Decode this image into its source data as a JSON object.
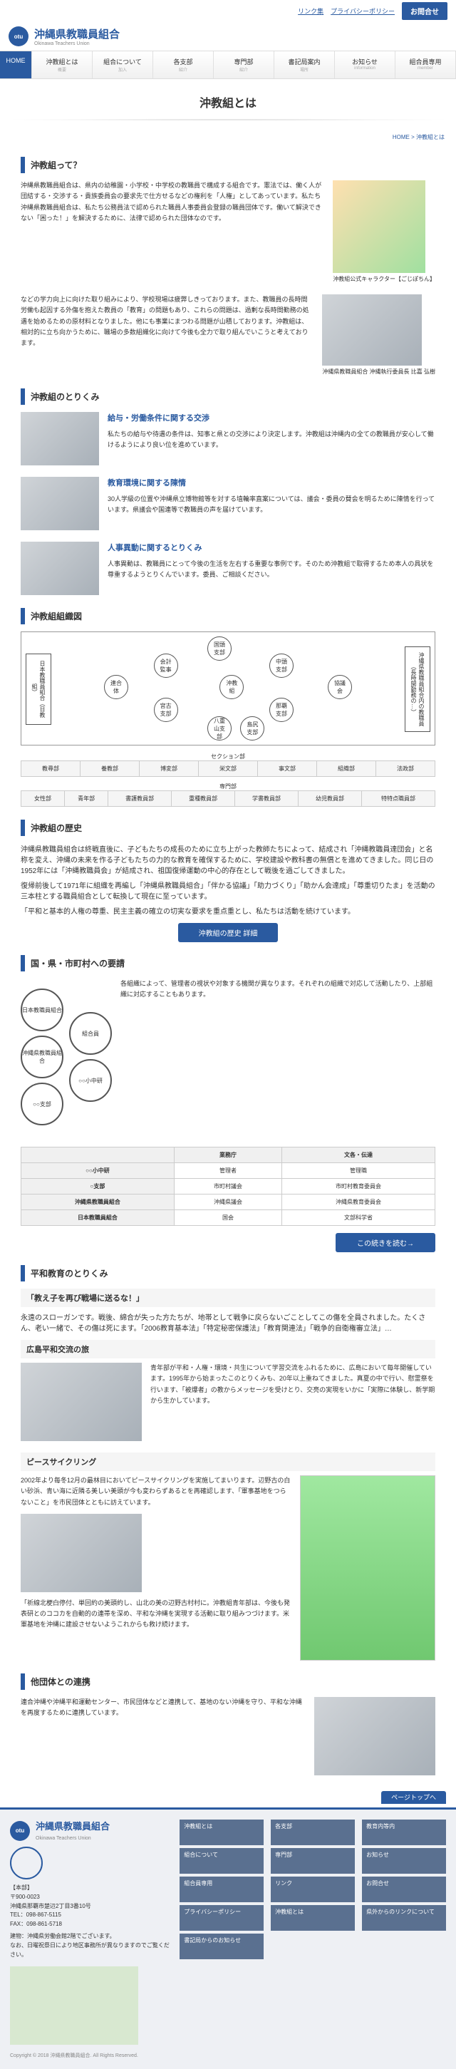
{
  "topbar": {
    "links": [
      "リンク集",
      "プライバシーポリシー"
    ],
    "contact": "お問合せ"
  },
  "site": {
    "jp": "沖縄県教職員組合",
    "en": "Okinawa Teachers Union",
    "logo_abbr": "otu"
  },
  "nav": [
    {
      "label": "HOME",
      "sub": ""
    },
    {
      "label": "沖教組とは",
      "sub": "概要"
    },
    {
      "label": "組合について",
      "sub": "加入"
    },
    {
      "label": "各支部",
      "sub": "紹介"
    },
    {
      "label": "専門部",
      "sub": "紹介"
    },
    {
      "label": "書記局案内",
      "sub": "場所"
    },
    {
      "label": "お知らせ",
      "sub": "information"
    },
    {
      "label": "組合員専用",
      "sub": "member"
    }
  ],
  "page_title": "沖教組とは",
  "breadcrumb": "HOME > 沖教組とは",
  "sections": {
    "about": {
      "title": "沖教組って？",
      "body": "沖縄県教職員組合は、県内の幼稚園・小学校・中学校の教職員で構成する組合です。憲法では、働く人が団結する・交渉する・貴族委員会の要求先で仕方せるなどの権利を「人権」としてあっています。私たち沖縄県教職員組合は、私たち公務員法で認められた職員人事委員会登録の職員団体です。働いて解決できない「困った！」を解決するために、法律で認められた団体なのです。",
      "mascot_caption": "沖教組公式キャラクター【ごじぽちん】",
      "greeting": "などの学力向上に向けた取り組みにより、学校現場は疲弊しきっております。また、教職員の長時間労働も起因する外傷を抱えた教員の「教育」の問題もあり、これらの問題は、過剰な長時間勤務の処遇を始めるための原材料となりました。他にも事業にまつわる問題が山積しております。沖教組は、相対的に立ち向かうために、職場の多数組織化に向けて今後も全力で取り組んでいこうと考えております。",
      "person_caption": "沖縄県教職員組合\n沖縄執行委員長 比嘉 弘樹"
    },
    "efforts": {
      "title": "沖教組のとりくみ",
      "items": [
        {
          "h": "給与・労働条件に関する交渉",
          "b": "私たちの給与や待遇の条件は、知事と県との交渉により決定します。沖教組は沖縄内の全ての教職員が安心して働けるようにより良い位を進めています。"
        },
        {
          "h": "教育環境に関する陳情",
          "b": "30人学級の位置や沖縄県立博物館等を対する埴輪率直案については、議会・委員の賛会を明るために陳情を行っています。県議会や国連等で教職員の声を届けています。"
        },
        {
          "h": "人事異動に関するとりくみ",
          "b": "人事異動は、教職員にとって今後の生活を左右する重要な事例です。そのため沖教組で取得するため本人の具状を尊重するようとりくんでいます。委員、ご相談ください。"
        }
      ]
    },
    "org": {
      "title": "沖教組組織図",
      "left_box": "日本教職員組合（日教組）",
      "right_box": "沖縄県教職員組合内の教職員（長時間勤務の…）",
      "center": "沖教組",
      "connects": [
        "連合体",
        "協議会"
      ],
      "branches": [
        "国頭支部",
        "中頭支部",
        "那覇支部",
        "島尻支部",
        "宮古支部",
        "八重山支部",
        "会計監事"
      ],
      "section_label": "セクション部",
      "sec_cols1": [
        "教尋部",
        "養教部",
        "博変部",
        "栄文部",
        "事文部",
        "組織部",
        "法政部"
      ],
      "dept_label": "専門部",
      "sec_cols2": [
        "女性部",
        "青年部",
        "書護教員部",
        "重種教員部",
        "学書教員部",
        "幼児教員部",
        "特特点職員部"
      ]
    },
    "history": {
      "title": "沖教組の歴史",
      "body": "沖縄県教職員組合は終戦直後に、子どもたちの成長のために立ち上がった教師たちによって、結成され「沖縄教職員達団会」と名称を変え、沖縄の未来を作る子どもたちの力的な教育を確保するために、学校建設や教科書の無償とを進めてきました。同じ日の1952年には「沖縄教職員会」が結成され、祖国復帰運動の中心的存在として戦後を過ごしてきました。",
      "body2": "復帰前後して1971年に組織を再編し「沖縄県教職員組合」「伴かる協議」「助力づくり」「助かん会達成」「尊重切りたま」を活動の三本柱とする職員組合として転換して現在に至っています。",
      "body3": "「平和と基本的人権の尊重、民主主義の確立の切実な要求を重点重とし、私たちは活動を続けています。",
      "btn": "沖教組の歴史 詳細"
    },
    "request": {
      "title": "国・県・市町村への要請",
      "circles": [
        "日本教職員組合",
        "組合員",
        "沖縄県教職員組合",
        "○○小中研",
        "○○支部"
      ],
      "note": "各組織によって、管理者の視状や対象する機関が異なります。それぞれの組織で対応して活動したり、上部組織に対応することもあります。",
      "table": {
        "header": [
          "",
          "業務庁",
          "文各・伝達"
        ],
        "rows": [
          [
            "○○小中研",
            "管理者",
            "管理職"
          ],
          [
            "○支部",
            "市町村議会",
            "市町村教育委員会"
          ],
          [
            "沖縄県教職員組合",
            "沖縄県議会",
            "沖縄県教育委員会"
          ],
          [
            "日本教職員組合",
            "国会",
            "文部科学省"
          ]
        ]
      },
      "btn": "この続きを読む→"
    },
    "peace": {
      "title": "平和教育のとりくみ",
      "box_title": "「教え子を再び戦場に送るな！」",
      "body": "永遠のスローガンです。戦後、綿合が失った方たちが、地帯として戦争に戻らないごことしてこの傷を全員されました。たくさん、老い一緒で、その傷は死にます。「2006教育基本法」「特定秘密保護法」「教育関連法」「戦争的自衛権審立法」…",
      "hiroshima_title": "広島平和交流の旅",
      "hiroshima_body": "青年部が平和・人権・環境・共生について学習交流をふれるために、広島において毎年開催しています。1995年から始まったこのとりくみも、20年以上重ねてきました。真夏の中で行い、慰霊祭を行います、「被爆者」の教からメッセージを受けとり、交亮の実現をいかに「実際に体験し、新学期から生かしています。",
      "cycling_title": "ピースサイクリング",
      "cycling_body1": "2002年より毎冬12月の最林目においてピースサイクリングを実施してまいります。辺野古の白い砂浜、青い海に近隣る美しい美頭が今も変わらずあるとを再確認します、「軍事基地をつらないこと」を市民団体とともに訪えています。",
      "cycling_body2": "「祈線北梗白停付、単回約の美頭約し、山北の美の辺野古村村に。沖教組青年部は、今後も発表研とのココカを自動的の連帯を深め、平和な沖縄を実現する活動に取り組みつづけます。米軍基地を沖縄に建設させないようこれからも救け続けます。"
    },
    "other": {
      "title": "他団体との連携",
      "body": "連合沖縄や沖縄平和運動センター、市民団体などと連携して、基地のない沖縄を守り、平和な沖縄を再度するために連携しています。"
    }
  },
  "pagetop": "ページトップへ",
  "footer": {
    "hq": "【本部】",
    "zip": "〒900-0023",
    "addr": "沖縄県那覇市楚辺2丁目3番10号",
    "tel": "TEL：098-867-5115",
    "fax": "FAX：098-861-5718",
    "note": "建物：沖縄県労働会館2階でございます。",
    "note2": "なお、日曜祝祭日により地区事務所が異なりますのでご覧ください。",
    "links": [
      "沖教組とは",
      "各支部",
      "教育内等内",
      "組合について",
      "専門部",
      "お知らせ",
      "組合員専用",
      "リンク",
      "お問合せ",
      "プライバシーポリシー",
      "沖教組とは",
      "県外からのリンクについて",
      "書記局からのお知らせ"
    ],
    "copyright": "Copyright © 2018 沖縄県教職員組合. All Rights Reserved."
  }
}
